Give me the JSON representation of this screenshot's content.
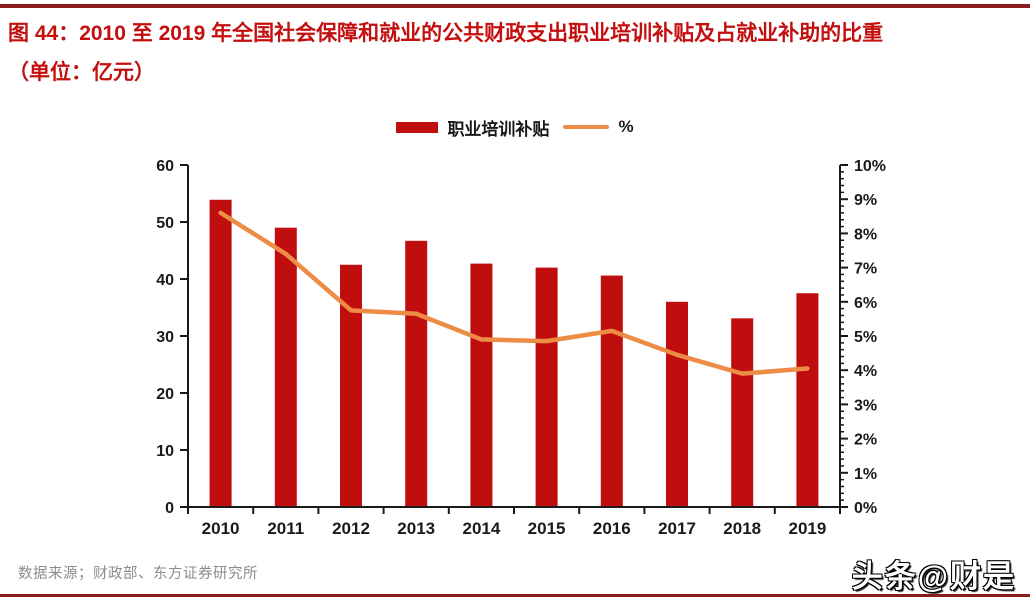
{
  "page": {
    "title_line1": "图 44：2010 至 2019 年全国社会保障和就业的公共财政支出职业培训补贴及占就业补助的比重",
    "title_line2": "（单位：亿元）",
    "source": "数据来源；财政部、东方证券研究所",
    "watermark": "头条@财是"
  },
  "legend": {
    "bar_label": "职业培训补贴",
    "line_label": "%"
  },
  "colors": {
    "bar": "#c00d0d",
    "line": "#ed8c45",
    "title": "#c40f0f",
    "rule": "#8e1b1b",
    "axis": "#1a1a1a",
    "source_text": "#8c8c8c"
  },
  "chart_data": {
    "type": "bar",
    "categories": [
      "2010",
      "2011",
      "2012",
      "2013",
      "2014",
      "2015",
      "2016",
      "2017",
      "2018",
      "2019"
    ],
    "series": [
      {
        "name": "职业培训补贴",
        "type": "bar",
        "axis": "left",
        "values": [
          53.9,
          49.0,
          42.5,
          46.7,
          42.7,
          42.0,
          40.6,
          36.0,
          33.1,
          37.5
        ]
      },
      {
        "name": "%",
        "type": "line",
        "axis": "right",
        "values": [
          8.6,
          7.4,
          5.75,
          5.65,
          4.9,
          4.85,
          5.15,
          4.45,
          3.9,
          4.05
        ]
      }
    ],
    "left_axis": {
      "min": 0,
      "max": 60,
      "step": 10,
      "tick_labels": [
        "0",
        "10",
        "20",
        "30",
        "40",
        "50",
        "60"
      ]
    },
    "right_axis": {
      "min": 0,
      "max": 10,
      "step": 1,
      "minor_step": 0.2,
      "tick_labels": [
        "0%",
        "1%",
        "2%",
        "3%",
        "4%",
        "5%",
        "6%",
        "7%",
        "8%",
        "9%",
        "10%"
      ]
    },
    "grid": false,
    "legend_position": "top-center"
  }
}
